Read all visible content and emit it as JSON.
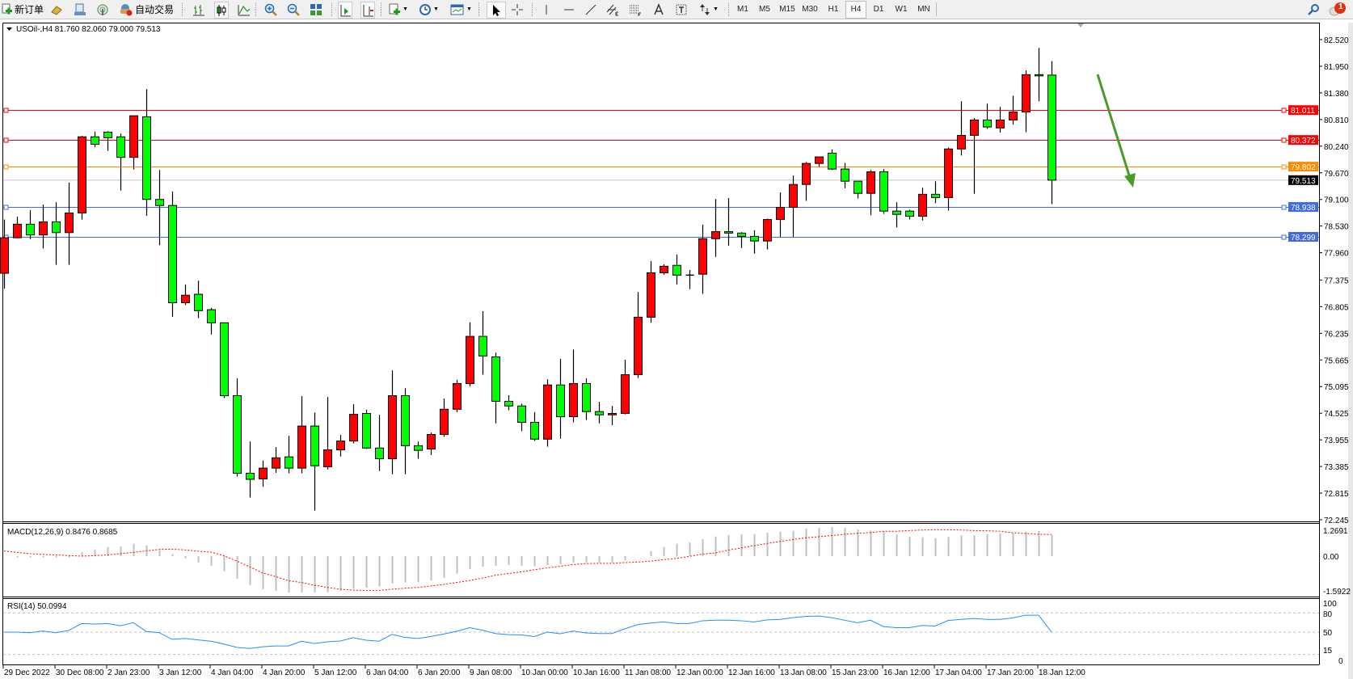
{
  "toolbar": {
    "new_order_label": "新订单",
    "auto_trading_label": "自动交易",
    "timeframes": [
      "M1",
      "M5",
      "M15",
      "M30",
      "H1",
      "H4",
      "D1",
      "W1",
      "MN"
    ],
    "active_timeframe": "H4",
    "notification_count": "1"
  },
  "chart": {
    "title": "USOil-,H4  81.760 82.060 79.000 79.513",
    "colors": {
      "bull": "#ff0000",
      "bear": "#00ff00",
      "outline": "#000000",
      "arrow": "#4a9a2a"
    },
    "price_ticks": [
      "82.520",
      "81.950",
      "81.380",
      "80.810",
      "80.240",
      "79.670",
      "79.100",
      "78.530",
      "77.960",
      "77.375",
      "76.805",
      "76.235",
      "75.665",
      "75.095",
      "74.525",
      "73.955",
      "73.385",
      "72.815",
      "72.245"
    ],
    "hlines": [
      {
        "price": 81.011,
        "label": "81.011",
        "color": "#ff0000"
      },
      {
        "price": 80.372,
        "label": "80.372",
        "color": "#ff0000"
      },
      {
        "price": 79.802,
        "label": "79.802",
        "color": "#ff8c00"
      },
      {
        "price": 78.938,
        "label": "78.938",
        "color": "#4169e1"
      },
      {
        "price": 78.299,
        "label": "78.299",
        "color": "#4169e1"
      }
    ],
    "current_price": {
      "price": 79.513,
      "label": "79.513",
      "color": "#000000"
    },
    "candles": [
      [
        77.52,
        78.67,
        77.19,
        78.28
      ],
      [
        78.28,
        78.73,
        78.27,
        78.57
      ],
      [
        78.57,
        78.87,
        78.25,
        78.34
      ],
      [
        78.34,
        78.99,
        78.05,
        78.62
      ],
      [
        78.62,
        79.04,
        77.7,
        78.39
      ],
      [
        78.39,
        79.46,
        77.7,
        78.81
      ],
      [
        78.81,
        80.46,
        78.67,
        80.44
      ],
      [
        80.44,
        80.55,
        80.22,
        80.28
      ],
      [
        80.54,
        80.56,
        80.14,
        80.42
      ],
      [
        80.44,
        80.51,
        79.29,
        80.0
      ],
      [
        80.0,
        80.89,
        79.74,
        80.89
      ],
      [
        80.87,
        81.46,
        78.75,
        79.1
      ],
      [
        79.1,
        79.73,
        78.12,
        78.97
      ],
      [
        78.97,
        79.27,
        76.59,
        76.89
      ],
      [
        76.89,
        77.28,
        76.84,
        77.05
      ],
      [
        77.07,
        77.36,
        76.56,
        76.72
      ],
      [
        76.74,
        76.78,
        76.21,
        76.46
      ],
      [
        76.46,
        76.46,
        74.85,
        74.9
      ],
      [
        74.9,
        75.27,
        73.17,
        73.24
      ],
      [
        73.24,
        73.92,
        72.72,
        73.11
      ],
      [
        73.12,
        73.51,
        72.95,
        73.35
      ],
      [
        73.35,
        73.8,
        73.25,
        73.57
      ],
      [
        73.59,
        74.04,
        73.24,
        73.35
      ],
      [
        73.35,
        74.89,
        73.24,
        74.25
      ],
      [
        74.25,
        74.54,
        72.44,
        73.4
      ],
      [
        73.38,
        74.87,
        73.32,
        73.74
      ],
      [
        73.74,
        74.06,
        73.6,
        73.93
      ],
      [
        73.93,
        74.72,
        73.88,
        74.5
      ],
      [
        74.52,
        74.6,
        73.76,
        73.78
      ],
      [
        73.78,
        74.49,
        73.29,
        73.55
      ],
      [
        73.55,
        75.44,
        73.22,
        74.9
      ],
      [
        74.9,
        75.06,
        73.22,
        73.83
      ],
      [
        73.83,
        73.92,
        73.55,
        73.73
      ],
      [
        73.76,
        74.11,
        73.63,
        74.07
      ],
      [
        74.07,
        74.84,
        74.02,
        74.61
      ],
      [
        74.61,
        75.24,
        74.55,
        75.16
      ],
      [
        75.16,
        76.47,
        75.1,
        76.17
      ],
      [
        76.17,
        76.71,
        75.35,
        75.75
      ],
      [
        75.73,
        75.82,
        74.31,
        74.78
      ],
      [
        74.78,
        74.91,
        74.59,
        74.68
      ],
      [
        74.68,
        74.73,
        74.14,
        74.33
      ],
      [
        74.33,
        74.55,
        73.93,
        73.97
      ],
      [
        73.97,
        75.25,
        73.81,
        75.13
      ],
      [
        75.13,
        75.69,
        73.98,
        74.45
      ],
      [
        74.45,
        75.89,
        74.33,
        75.16
      ],
      [
        75.16,
        75.27,
        74.38,
        74.56
      ],
      [
        74.56,
        74.77,
        74.31,
        74.49
      ],
      [
        74.49,
        74.68,
        74.27,
        74.52
      ],
      [
        74.52,
        75.67,
        74.5,
        75.35
      ],
      [
        75.35,
        77.12,
        75.28,
        76.58
      ],
      [
        76.58,
        77.78,
        76.46,
        77.53
      ],
      [
        77.53,
        77.71,
        77.49,
        77.67
      ],
      [
        77.69,
        77.92,
        77.28,
        77.48
      ],
      [
        77.48,
        77.59,
        77.18,
        77.48
      ],
      [
        77.5,
        78.56,
        77.08,
        78.26
      ],
      [
        78.26,
        79.11,
        77.87,
        78.41
      ],
      [
        78.41,
        79.13,
        78.11,
        78.38
      ],
      [
        78.38,
        78.4,
        78.06,
        78.31
      ],
      [
        78.31,
        78.44,
        77.94,
        78.21
      ],
      [
        78.21,
        78.69,
        78.03,
        78.67
      ],
      [
        78.67,
        79.25,
        78.3,
        78.93
      ],
      [
        78.93,
        79.61,
        78.3,
        79.42
      ],
      [
        79.42,
        79.9,
        79.07,
        79.87
      ],
      [
        79.87,
        80.01,
        79.8,
        80.01
      ],
      [
        80.09,
        80.17,
        79.73,
        79.75
      ],
      [
        79.75,
        79.88,
        79.34,
        79.49
      ],
      [
        79.49,
        79.49,
        79.12,
        79.23
      ],
      [
        79.23,
        79.73,
        78.76,
        79.69
      ],
      [
        79.69,
        79.75,
        78.79,
        78.85
      ],
      [
        78.85,
        79.04,
        78.5,
        78.78
      ],
      [
        78.85,
        78.88,
        78.67,
        78.74
      ],
      [
        78.74,
        79.35,
        78.65,
        79.21
      ],
      [
        79.21,
        79.49,
        79.02,
        79.14
      ],
      [
        79.14,
        80.21,
        78.86,
        80.18
      ],
      [
        80.18,
        81.2,
        80.04,
        80.47
      ],
      [
        80.47,
        80.84,
        79.22,
        80.8
      ],
      [
        80.8,
        81.15,
        80.61,
        80.65
      ],
      [
        80.63,
        81.08,
        80.53,
        80.8
      ],
      [
        80.8,
        81.32,
        80.7,
        80.97
      ],
      [
        80.97,
        81.86,
        80.54,
        81.77
      ],
      [
        81.77,
        82.34,
        81.2,
        81.76
      ],
      [
        81.76,
        82.06,
        79.0,
        79.513
      ]
    ],
    "time_labels": [
      "29 Dec 2022",
      "30 Dec 08:00",
      "2 Jan 23:00",
      "3 Jan 12:00",
      "4 Jan 04:00",
      "4 Jan 20:00",
      "5 Jan 12:00",
      "6 Jan 04:00",
      "6 Jan 20:00",
      "9 Jan 08:00",
      "10 Jan 00:00",
      "10 Jan 16:00",
      "11 Jan 08:00",
      "12 Jan 00:00",
      "12 Jan 16:00",
      "13 Jan 08:00",
      "15 Jan 23:00",
      "16 Jan 12:00",
      "17 Jan 04:00",
      "17 Jan 20:00",
      "18 Jan 12:00"
    ]
  },
  "macd": {
    "title": "MACD(12,26,9) 0.8476 0.8685",
    "axis_labels": [
      "1.2691",
      "0.00",
      "-1.5922"
    ],
    "histogram_color": "#c0c0c0",
    "signal_color": "#ff0000",
    "histogram": [
      0.0,
      -0.05,
      -0.05,
      -0.05,
      -0.05,
      -0.05,
      0.16,
      0.27,
      0.37,
      0.39,
      0.5,
      0.43,
      0.24,
      0.08,
      -0.09,
      -0.25,
      -0.39,
      -0.61,
      -0.91,
      -1.16,
      -1.33,
      -1.4,
      -1.46,
      -1.46,
      -1.46,
      -1.45,
      -1.39,
      -1.31,
      -1.27,
      -1.22,
      -1.09,
      -1.06,
      -1.04,
      -0.98,
      -0.88,
      -0.7,
      -0.52,
      -0.42,
      -0.39,
      -0.36,
      -0.39,
      -0.41,
      -0.36,
      -0.33,
      -0.25,
      -0.25,
      -0.25,
      -0.25,
      -0.17,
      0.01,
      0.21,
      0.37,
      0.5,
      0.55,
      0.68,
      0.79,
      0.85,
      0.88,
      0.89,
      0.94,
      0.98,
      1.02,
      1.11,
      1.14,
      1.17,
      1.14,
      1.07,
      1.03,
      0.98,
      0.88,
      0.78,
      0.76,
      0.73,
      0.77,
      0.83,
      0.85,
      0.89,
      0.91,
      0.92,
      0.98,
      1.01,
      0.8476
    ],
    "signal": [
      0.21,
      0.15,
      0.1,
      0.07,
      0.05,
      0.02,
      0.0,
      0.02,
      0.05,
      0.1,
      0.15,
      0.21,
      0.27,
      0.28,
      0.25,
      0.2,
      0.16,
      0.02,
      -0.2,
      -0.43,
      -0.68,
      -0.82,
      -0.99,
      -1.06,
      -1.17,
      -1.26,
      -1.33,
      -1.37,
      -1.38,
      -1.38,
      -1.33,
      -1.29,
      -1.26,
      -1.2,
      -1.14,
      -1.06,
      -0.98,
      -0.88,
      -0.77,
      -0.7,
      -0.63,
      -0.55,
      -0.47,
      -0.41,
      -0.34,
      -0.3,
      -0.29,
      -0.29,
      -0.26,
      -0.24,
      -0.2,
      -0.14,
      -0.09,
      -0.01,
      0.08,
      0.13,
      0.24,
      0.33,
      0.42,
      0.51,
      0.59,
      0.67,
      0.74,
      0.78,
      0.83,
      0.88,
      0.92,
      0.95,
      1.0,
      1.0,
      1.03,
      1.05,
      1.06,
      1.06,
      1.05,
      1.03,
      1.02,
      1.0,
      0.94,
      0.91,
      0.88,
      0.8685
    ],
    "range": [
      -1.5922,
      1.2691
    ]
  },
  "rsi": {
    "title": "RSI(14) 50.0994",
    "axis_labels": [
      "100",
      "80",
      "50",
      "15",
      "0"
    ],
    "levels": [
      80,
      50,
      15
    ],
    "line_color": "#1e90ff",
    "values": [
      50.0,
      50.0,
      49.1,
      51.7,
      49.1,
      52.6,
      63.4,
      62.6,
      63.4,
      60.0,
      64.8,
      50.9,
      49.1,
      38.7,
      40.0,
      37.8,
      35.7,
      31.3,
      26.1,
      24.4,
      27.0,
      28.3,
      28.3,
      35.7,
      32.2,
      34.8,
      36.1,
      41.3,
      37.4,
      35.7,
      46.5,
      41.7,
      40.0,
      43.1,
      47.0,
      51.3,
      56.9,
      53.0,
      47.8,
      46.1,
      45.6,
      43.1,
      50.0,
      47.4,
      51.7,
      48.7,
      47.8,
      47.8,
      55.2,
      61.7,
      64.3,
      66.0,
      63.4,
      63.4,
      67.8,
      68.6,
      68.6,
      67.8,
      66.0,
      69.1,
      70.0,
      72.6,
      74.7,
      75.2,
      72.6,
      68.6,
      64.8,
      68.6,
      58.7,
      56.9,
      56.9,
      60.4,
      59.5,
      68.2,
      70.0,
      71.3,
      70.0,
      70.0,
      72.2,
      76.5,
      76.5,
      50.0994
    ]
  }
}
